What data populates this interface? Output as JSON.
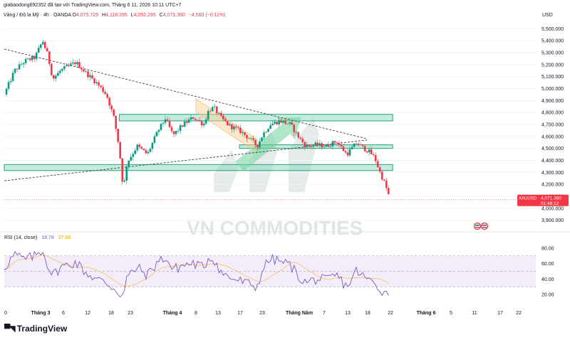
{
  "header": {
    "published": "giabaodong692352 đã tạo với TradingView.com, Tháng 6 11, 2026 10:11 UTC+7",
    "symbol": "Vàng / Đô la Mỹ · 4h · OANDA",
    "ohlc": [
      {
        "label": "O",
        "value": "4,075.725"
      },
      {
        "label": "H",
        "value": "4,118.395"
      },
      {
        "label": "L",
        "value": "4,052.295"
      },
      {
        "label": "C",
        "value": "4,071.360"
      }
    ],
    "change": "−4,560 (−0.11%)",
    "currency": "USD"
  },
  "price_badge": {
    "symbol": "XAUUSD",
    "price": "4,071.360",
    "countdown": "01:48:12"
  },
  "watermark": "VN COMMODITIES",
  "rsi": {
    "label": "RSI (14, close)",
    "value": "18.78",
    "ma_value": "37.68"
  },
  "footer": {
    "brand": "TradingView"
  },
  "colors": {
    "up": "#089981",
    "down": "#f23645",
    "zone_fill": "#7fd3b8",
    "zone_border": "#22a37a",
    "rsi_line": "#7e57c2",
    "rsi_ma": "#f7c66b",
    "rsi_band": "#ede7f6",
    "watermark": "#dfe7e6"
  },
  "chart_data": [
    {
      "type": "candlestick",
      "title": "Vàng / Đô la Mỹ · 4h · OANDA",
      "ylim": [
        3850,
        5550
      ],
      "y_ticks": [
        3900,
        4000,
        4100,
        4200,
        4300,
        4400,
        4500,
        4600,
        4700,
        4800,
        4900,
        5000,
        5100,
        5200,
        5300,
        5400,
        5500
      ],
      "y_tick_labels": [
        "3,900.000",
        "4,000.000",
        "4,100.000",
        "4,200.000",
        "4,300.000",
        "4,400.000",
        "4,500.000",
        "4,600.000",
        "4,700.000",
        "4,800.000",
        "4,900.000",
        "5,000.000",
        "5,100.000",
        "5,200.000",
        "5,300.000",
        "5,400.000",
        "5,500.000"
      ],
      "x_ticks": [
        "0",
        "Tháng 3",
        "6",
        "12",
        "18",
        "23",
        "Tháng 4",
        "8",
        "13",
        "17",
        "23",
        "Tháng Năm",
        "7",
        "13",
        "18",
        "22",
        "Tháng 6",
        "5",
        "11",
        "17",
        "22"
      ],
      "price_path": [
        [
          0,
          4950
        ],
        [
          2,
          5150
        ],
        [
          4,
          5230
        ],
        [
          6,
          5260
        ],
        [
          7.5,
          5400
        ],
        [
          8.5,
          5280
        ],
        [
          9.5,
          5080
        ],
        [
          11,
          5150
        ],
        [
          14,
          5220
        ],
        [
          16,
          5130
        ],
        [
          18,
          5050
        ],
        [
          20,
          4950
        ],
        [
          21.5,
          4750
        ],
        [
          22.5,
          4500
        ],
        [
          23.3,
          4150
        ],
        [
          24,
          4380
        ],
        [
          26,
          4520
        ],
        [
          28,
          4450
        ],
        [
          30,
          4640
        ],
        [
          31.5,
          4750
        ],
        [
          33,
          4610
        ],
        [
          35,
          4700
        ],
        [
          37,
          4760
        ],
        [
          39,
          4700
        ],
        [
          40,
          4820
        ],
        [
          41,
          4840
        ],
        [
          42.5,
          4750
        ],
        [
          44,
          4690
        ],
        [
          46,
          4650
        ],
        [
          48,
          4580
        ],
        [
          49.5,
          4520
        ],
        [
          50.5,
          4610
        ],
        [
          52,
          4700
        ],
        [
          54,
          4730
        ],
        [
          56,
          4700
        ],
        [
          57.5,
          4600
        ],
        [
          59,
          4520
        ],
        [
          61,
          4530
        ],
        [
          63,
          4520
        ],
        [
          65,
          4560
        ],
        [
          67,
          4450
        ],
        [
          68,
          4500
        ],
        [
          69,
          4550
        ],
        [
          70,
          4510
        ],
        [
          71.5,
          4470
        ],
        [
          72.5,
          4420
        ],
        [
          73.5,
          4300
        ],
        [
          74.5,
          4200
        ],
        [
          75.5,
          4071
        ]
      ],
      "zones": [
        {
          "low": 4730,
          "high": 4785,
          "from": 22.5,
          "to": 76
        },
        {
          "low": 4500,
          "high": 4530,
          "from": 46,
          "to": 76
        },
        {
          "low": 4315,
          "high": 4365,
          "from": 0,
          "to": 76
        }
      ],
      "channel": {
        "from": [
          37.5,
          4860
        ],
        "to": [
          49.5,
          4520
        ],
        "width": 110
      },
      "trendlines": [
        {
          "from": [
            0,
            5330
          ],
          "to": [
            71,
            4580
          ]
        },
        {
          "from": [
            0,
            4230
          ],
          "to": [
            71,
            4570
          ]
        }
      ],
      "arrow": {
        "from": [
          46,
          4350
        ],
        "to": [
          58,
          4760
        ]
      },
      "last_price": 4071.36
    },
    {
      "type": "line",
      "title": "RSI (14, close)",
      "ylim": [
        10,
        90
      ],
      "y_ticks": [
        20,
        40,
        60,
        80
      ],
      "y_tick_labels": [
        "20.00",
        "40.00",
        "60.00",
        "80.00"
      ],
      "band": [
        30,
        70
      ],
      "mid": 50,
      "rsi_path": [
        [
          0,
          55
        ],
        [
          2,
          72
        ],
        [
          4,
          65
        ],
        [
          6,
          70
        ],
        [
          7.5,
          78
        ],
        [
          8.5,
          58
        ],
        [
          9.5,
          45
        ],
        [
          11,
          55
        ],
        [
          14,
          62
        ],
        [
          16,
          48
        ],
        [
          18,
          40
        ],
        [
          20,
          35
        ],
        [
          21.5,
          28
        ],
        [
          22.5,
          22
        ],
        [
          23.3,
          18
        ],
        [
          24,
          42
        ],
        [
          26,
          55
        ],
        [
          28,
          45
        ],
        [
          30,
          62
        ],
        [
          31.5,
          68
        ],
        [
          33,
          52
        ],
        [
          35,
          58
        ],
        [
          37,
          60
        ],
        [
          39,
          55
        ],
        [
          40,
          68
        ],
        [
          41,
          66
        ],
        [
          42.5,
          48
        ],
        [
          44,
          42
        ],
        [
          46,
          38
        ],
        [
          48,
          33
        ],
        [
          49.5,
          30
        ],
        [
          50.5,
          52
        ],
        [
          52,
          66
        ],
        [
          54,
          63
        ],
        [
          56,
          58
        ],
        [
          57.5,
          44
        ],
        [
          59,
          35
        ],
        [
          61,
          40
        ],
        [
          63,
          38
        ],
        [
          65,
          45
        ],
        [
          67,
          30
        ],
        [
          68,
          40
        ],
        [
          69,
          52
        ],
        [
          70,
          44
        ],
        [
          71.5,
          38
        ],
        [
          72.5,
          34
        ],
        [
          73.5,
          28
        ],
        [
          74.5,
          22
        ],
        [
          75.5,
          18.78
        ]
      ],
      "last_value": 18.78,
      "ma_last_value": 37.68
    }
  ]
}
